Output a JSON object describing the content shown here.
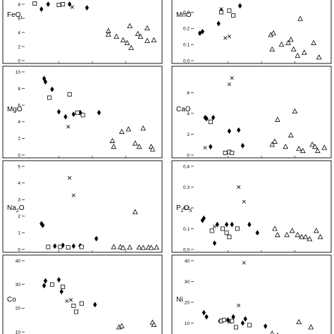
{
  "chart_data": [
    {
      "type": "scatter",
      "panel": "FeOt",
      "ylabel": "FeO",
      "ylabel_sub": "t",
      "ylim": [
        0,
        8
      ],
      "yticks": [
        0,
        2,
        4,
        6,
        8
      ],
      "y_tick_labels": [
        "0",
        "2",
        "4",
        "6",
        "8"
      ],
      "series": [
        {
          "marker": "diamond",
          "points": [
            [
              0.17,
              8
            ],
            [
              0.33,
              8
            ],
            [
              0.46,
              7.5
            ],
            [
              0.12,
              7.3
            ]
          ]
        },
        {
          "marker": "square",
          "points": [
            [
              0.28,
              8
            ],
            [
              0.25,
              7.9
            ],
            [
              0.07,
              8.1
            ]
          ]
        },
        {
          "marker": "cross",
          "points": [
            [
              0.35,
              7.6
            ]
          ]
        },
        {
          "marker": "triangle",
          "points": [
            [
              0.62,
              4.2
            ],
            [
              0.62,
              3.7
            ],
            [
              0.68,
              3.4
            ],
            [
              0.73,
              2.9
            ],
            [
              0.76,
              2.5
            ],
            [
              0.78,
              4.9
            ],
            [
              0.79,
              1.8
            ],
            [
              0.84,
              3.8
            ],
            [
              0.86,
              3.4
            ],
            [
              0.91,
              4.6
            ],
            [
              0.91,
              2.8
            ],
            [
              0.96,
              2.9
            ]
          ]
        }
      ]
    },
    {
      "type": "scatter",
      "panel": "MnO",
      "ylabel": "MnO",
      "ylim": [
        0,
        0.35
      ],
      "yticks": [
        0,
        0.1,
        0.2,
        0.3
      ],
      "y_tick_labels": [
        "0.0",
        "0.1",
        "0.2",
        "0.3"
      ],
      "series": [
        {
          "marker": "diamond",
          "points": [
            [
              0.04,
              0.17
            ],
            [
              0.06,
              0.18
            ],
            [
              0.18,
              0.23
            ],
            [
              0.2,
              0.31
            ],
            [
              0.34,
              0.34
            ]
          ]
        },
        {
          "marker": "square",
          "points": [
            [
              0.2,
              0.3
            ],
            [
              0.26,
              0.31
            ],
            [
              0.29,
              0.28
            ]
          ]
        },
        {
          "marker": "cross",
          "points": [
            [
              0.2,
              0.32
            ],
            [
              0.23,
              0.14
            ],
            [
              0.26,
              0.15
            ]
          ]
        },
        {
          "marker": "triangle",
          "points": [
            [
              0.57,
              0.16
            ],
            [
              0.58,
              0.07
            ],
            [
              0.59,
              0.17
            ],
            [
              0.65,
              0.1
            ],
            [
              0.7,
              0.11
            ],
            [
              0.72,
              0.13
            ],
            [
              0.74,
              0.07
            ],
            [
              0.77,
              0.03
            ],
            [
              0.79,
              0.26
            ],
            [
              0.82,
              0.05
            ],
            [
              0.89,
              0.11
            ],
            [
              0.93,
              0.02
            ]
          ]
        }
      ]
    },
    {
      "type": "scatter",
      "panel": "MgO",
      "ylabel": "MgO",
      "ylim": [
        0,
        10
      ],
      "yticks": [
        0,
        2,
        4,
        6,
        8,
        10
      ],
      "y_tick_labels": [
        "0",
        "2",
        "4",
        "6",
        "8",
        "10"
      ],
      "series": [
        {
          "marker": "diamond",
          "points": [
            [
              0.14,
              9.2
            ],
            [
              0.15,
              8.8
            ],
            [
              0.2,
              7.9
            ],
            [
              0.25,
              5.2
            ],
            [
              0.3,
              4.6
            ],
            [
              0.36,
              4.9
            ],
            [
              0.41,
              5.1
            ],
            [
              0.55,
              5.1
            ]
          ]
        },
        {
          "marker": "square",
          "points": [
            [
              0.18,
              6.9
            ],
            [
              0.33,
              7.3
            ],
            [
              0.39,
              5.1
            ],
            [
              0.43,
              4.8
            ]
          ]
        },
        {
          "marker": "cross",
          "points": [
            [
              0.32,
              3.4
            ]
          ]
        },
        {
          "marker": "triangle",
          "points": [
            [
              0.65,
              1.7
            ],
            [
              0.66,
              1.0
            ],
            [
              0.72,
              2.8
            ],
            [
              0.77,
              3.1
            ],
            [
              0.82,
              1.4
            ],
            [
              0.85,
              1.0
            ],
            [
              0.88,
              3.2
            ],
            [
              0.94,
              1.0
            ],
            [
              0.95,
              0.7
            ]
          ]
        }
      ]
    },
    {
      "type": "scatter",
      "panel": "CaO",
      "ylabel": "CaO",
      "ylim": [
        0,
        8
      ],
      "yticks": [
        0,
        2,
        4,
        6
      ],
      "y_tick_labels": [
        "0",
        "2",
        "4",
        "6"
      ],
      "series": [
        {
          "marker": "diamond",
          "points": [
            [
              0.08,
              3.6
            ],
            [
              0.09,
              3.5
            ],
            [
              0.14,
              3.6
            ],
            [
              0.12,
              0.8
            ],
            [
              0.26,
              2.3
            ],
            [
              0.33,
              2.4
            ],
            [
              0.36,
              0.9
            ]
          ]
        },
        {
          "marker": "square",
          "points": [
            [
              0.12,
              3.2
            ],
            [
              0.23,
              0.2
            ],
            [
              0.26,
              0.3
            ],
            [
              0.28,
              0.2
            ]
          ]
        },
        {
          "marker": "cross",
          "points": [
            [
              0.08,
              0.7
            ],
            [
              0.26,
              6.8
            ],
            [
              0.28,
              7.4
            ]
          ]
        },
        {
          "marker": "triangle",
          "points": [
            [
              0.58,
              1.0
            ],
            [
              0.6,
              1.3
            ],
            [
              0.62,
              3.4
            ],
            [
              0.68,
              0.8
            ],
            [
              0.72,
              1.9
            ],
            [
              0.75,
              4.2
            ],
            [
              0.78,
              0.6
            ],
            [
              0.81,
              0.4
            ],
            [
              0.88,
              1.0
            ],
            [
              0.9,
              0.8
            ],
            [
              0.92,
              0.4
            ],
            [
              0.97,
              0.7
            ]
          ]
        }
      ]
    },
    {
      "type": "scatter",
      "panel": "Na2O",
      "ylabel": "Na",
      "ylabel_sub": "2",
      "ylabel_tail": "O",
      "ylim": [
        0,
        5
      ],
      "yticks": [
        0,
        1,
        2,
        3,
        4,
        5
      ],
      "y_tick_labels": [
        "0",
        "1",
        "2",
        "3",
        "4",
        "5"
      ],
      "series": [
        {
          "marker": "diamond",
          "points": [
            [
              0.12,
              1.55
            ],
            [
              0.13,
              1.45
            ],
            [
              0.22,
              0.2
            ],
            [
              0.28,
              0.25
            ],
            [
              0.36,
              0.2
            ],
            [
              0.41,
              0.22
            ],
            [
              0.53,
              0.65
            ]
          ]
        },
        {
          "marker": "square",
          "points": [
            [
              0.17,
              0.15
            ],
            [
              0.26,
              0.15
            ],
            [
              0.32,
              0.12
            ],
            [
              0.42,
              0.15
            ]
          ]
        },
        {
          "marker": "cross",
          "points": [
            [
              0.33,
              4.3
            ],
            [
              0.36,
              3.25
            ]
          ]
        },
        {
          "marker": "triangle",
          "points": [
            [
              0.66,
              0.15
            ],
            [
              0.71,
              0.15
            ],
            [
              0.73,
              0.1
            ],
            [
              0.78,
              0.12
            ],
            [
              0.82,
              2.25
            ],
            [
              0.85,
              0.12
            ],
            [
              0.88,
              0.1
            ],
            [
              0.92,
              0.12
            ],
            [
              0.94,
              0.1
            ],
            [
              0.98,
              0.12
            ]
          ]
        }
      ]
    },
    {
      "type": "scatter",
      "panel": "P2O5",
      "ylabel": "P",
      "ylabel_sub": "2",
      "ylabel_tail": "O",
      "ylabel_sub2": "5",
      "ylim": [
        0,
        0.4
      ],
      "yticks": [
        0,
        0.1,
        0.2,
        0.3,
        0.4
      ],
      "y_tick_labels": [
        "0.0",
        "0.1",
        "0.2",
        "0.3",
        "0.4"
      ],
      "series": [
        {
          "marker": "diamond",
          "points": [
            [
              0.06,
              0.14
            ],
            [
              0.07,
              0.15
            ],
            [
              0.15,
              0.03
            ],
            [
              0.17,
              0.12
            ],
            [
              0.24,
              0.12
            ],
            [
              0.28,
              0.12
            ],
            [
              0.41,
              0.12
            ],
            [
              0.47,
              0.08
            ]
          ]
        },
        {
          "marker": "square",
          "points": [
            [
              0.13,
              0.09
            ],
            [
              0.21,
              0.1
            ],
            [
              0.24,
              0.08
            ],
            [
              0.26,
              0.06
            ],
            [
              0.32,
              0.1
            ]
          ]
        },
        {
          "marker": "cross",
          "points": [
            [
              0.15,
              0.11
            ],
            [
              0.33,
              0.3
            ],
            [
              0.37,
              0.23
            ]
          ]
        },
        {
          "marker": "triangle",
          "points": [
            [
              0.6,
              0.1
            ],
            [
              0.62,
              0.07
            ],
            [
              0.69,
              0.07
            ],
            [
              0.73,
              0.09
            ],
            [
              0.77,
              0.07
            ],
            [
              0.8,
              0.06
            ],
            [
              0.83,
              0.06
            ],
            [
              0.86,
              0.05
            ],
            [
              0.91,
              0.09
            ],
            [
              0.94,
              0.06
            ]
          ]
        }
      ]
    },
    {
      "type": "scatter",
      "panel": "Co",
      "ylabel": "Co",
      "ylim": [
        5,
        40
      ],
      "yticks": [
        10,
        20,
        30,
        40
      ],
      "y_tick_labels": [
        "10",
        "20",
        "30",
        "40"
      ],
      "series": [
        {
          "marker": "diamond",
          "points": [
            [
              0.14,
              29.5
            ],
            [
              0.15,
              31.5
            ],
            [
              0.25,
              32
            ],
            [
              0.27,
              27
            ],
            [
              0.52,
              21.5
            ]
          ]
        },
        {
          "marker": "square",
          "points": [
            [
              0.2,
              30
            ],
            [
              0.28,
              29
            ],
            [
              0.36,
              21
            ],
            [
              0.38,
              18.5
            ],
            [
              0.42,
              22
            ]
          ]
        },
        {
          "marker": "cross",
          "points": [
            [
              0.31,
              23
            ],
            [
              0.34,
              23.5
            ]
          ]
        },
        {
          "marker": "triangle",
          "points": [
            [
              0.7,
              12
            ],
            [
              0.72,
              12.5
            ],
            [
              0.82,
              5.5
            ],
            [
              0.95,
              14
            ],
            [
              0.96,
              13
            ]
          ]
        }
      ]
    },
    {
      "type": "scatter",
      "panel": "Ni",
      "ylabel": "Ni",
      "ylim": [
        0,
        40
      ],
      "yticks": [
        10,
        20,
        30,
        40
      ],
      "y_tick_labels": [
        "10",
        "20",
        "30",
        "40"
      ],
      "series": [
        {
          "marker": "diamond",
          "points": [
            [
              0.07,
              15
            ],
            [
              0.09,
              13
            ],
            [
              0.19,
              11
            ],
            [
              0.25,
              11.5
            ],
            [
              0.29,
              13
            ],
            [
              0.36,
              10
            ],
            [
              0.38,
              12
            ],
            [
              0.53,
              8.5
            ]
          ]
        },
        {
          "marker": "square",
          "points": [
            [
              0.2,
              11
            ],
            [
              0.22,
              11.5
            ],
            [
              0.28,
              11
            ],
            [
              0.31,
              8
            ],
            [
              0.41,
              9
            ]
          ]
        },
        {
          "marker": "cross",
          "points": [
            [
              0.26,
              10.5
            ],
            [
              0.33,
              18.5
            ],
            [
              0.37,
              39
            ]
          ]
        },
        {
          "marker": "triangle",
          "points": [
            [
              0.58,
              5
            ],
            [
              0.62,
              4
            ],
            [
              0.78,
              10.5
            ],
            [
              0.87,
              8
            ]
          ]
        }
      ]
    }
  ]
}
